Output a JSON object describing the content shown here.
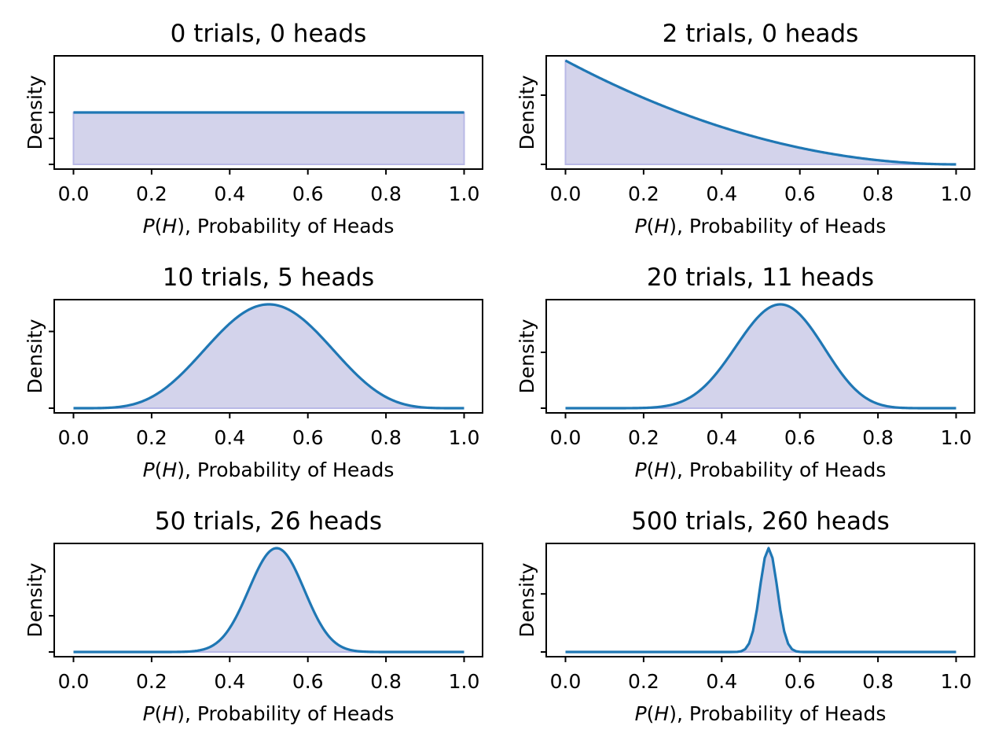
{
  "chart_data": [
    {
      "type": "area",
      "title": "0 trials, 0 heads",
      "trials": 0,
      "heads": 0,
      "xlabel": "P(H), Probability of Heads",
      "ylabel": "Density",
      "xlim": [
        0,
        1
      ],
      "xticks": [
        "0.0",
        "0.2",
        "0.4",
        "0.6",
        "0.8",
        "1.0"
      ],
      "curve": "beta(heads+1, trials-heads+1) density",
      "line_color": "#1f77b4",
      "fill_color": "#d3d3eb",
      "grid": false
    },
    {
      "type": "area",
      "title": "2 trials, 0 heads",
      "trials": 2,
      "heads": 0,
      "xlabel": "P(H), Probability of Heads",
      "ylabel": "Density",
      "xlim": [
        0,
        1
      ],
      "xticks": [
        "0.0",
        "0.2",
        "0.4",
        "0.6",
        "0.8",
        "1.0"
      ],
      "curve": "beta(heads+1, trials-heads+1) density",
      "line_color": "#1f77b4",
      "fill_color": "#d3d3eb",
      "grid": false
    },
    {
      "type": "area",
      "title": "10 trials, 5 heads",
      "trials": 10,
      "heads": 5,
      "xlabel": "P(H), Probability of Heads",
      "ylabel": "Density",
      "xlim": [
        0,
        1
      ],
      "xticks": [
        "0.0",
        "0.2",
        "0.4",
        "0.6",
        "0.8",
        "1.0"
      ],
      "curve": "beta(heads+1, trials-heads+1) density",
      "line_color": "#1f77b4",
      "fill_color": "#d3d3eb",
      "grid": false
    },
    {
      "type": "area",
      "title": "20 trials, 11 heads",
      "trials": 20,
      "heads": 11,
      "xlabel": "P(H), Probability of Heads",
      "ylabel": "Density",
      "xlim": [
        0,
        1
      ],
      "xticks": [
        "0.0",
        "0.2",
        "0.4",
        "0.6",
        "0.8",
        "1.0"
      ],
      "curve": "beta(heads+1, trials-heads+1) density",
      "line_color": "#1f77b4",
      "fill_color": "#d3d3eb",
      "grid": false
    },
    {
      "type": "area",
      "title": "50 trials, 26 heads",
      "trials": 50,
      "heads": 26,
      "xlabel": "P(H), Probability of Heads",
      "ylabel": "Density",
      "xlim": [
        0,
        1
      ],
      "xticks": [
        "0.0",
        "0.2",
        "0.4",
        "0.6",
        "0.8",
        "1.0"
      ],
      "curve": "beta(heads+1, trials-heads+1) density",
      "line_color": "#1f77b4",
      "fill_color": "#d3d3eb",
      "grid": false
    },
    {
      "type": "area",
      "title": "500 trials, 260 heads",
      "trials": 500,
      "heads": 260,
      "xlabel": "P(H), Probability of Heads",
      "ylabel": "Density",
      "xlim": [
        0,
        1
      ],
      "xticks": [
        "0.0",
        "0.2",
        "0.4",
        "0.6",
        "0.8",
        "1.0"
      ],
      "curve": "beta(heads+1, trials-heads+1) density",
      "line_color": "#1f77b4",
      "fill_color": "#d3d3eb",
      "grid": false
    }
  ]
}
